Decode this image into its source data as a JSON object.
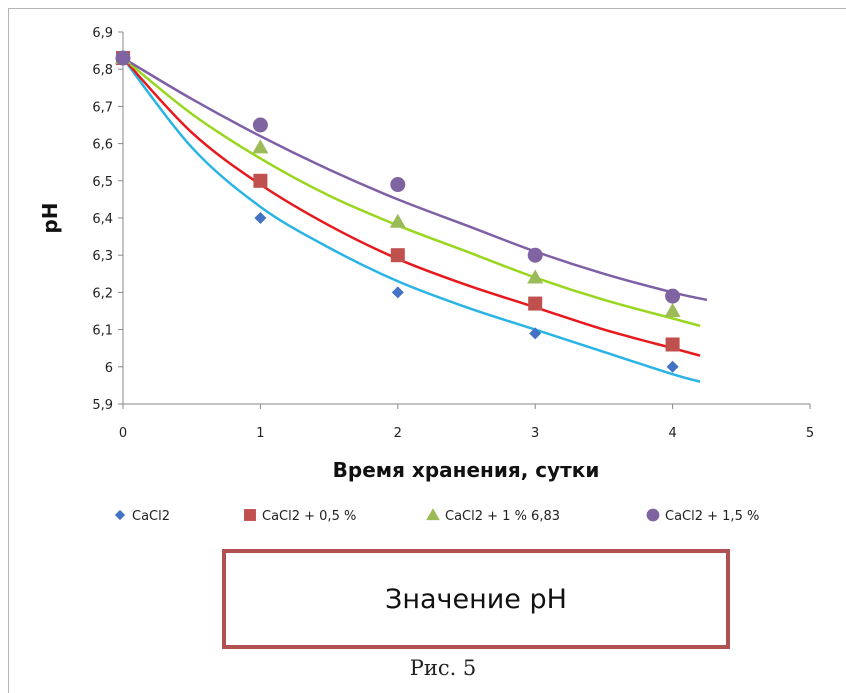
{
  "chart_data": {
    "type": "scatter",
    "xlabel": "Время хранения, сутки",
    "ylabel": "pH",
    "xlim": [
      0,
      5
    ],
    "ylim": [
      5.9,
      6.9
    ],
    "x_ticks": [
      "0",
      "1",
      "2",
      "3",
      "4",
      "5"
    ],
    "y_ticks": [
      "5,9",
      "6",
      "6,1",
      "6,2",
      "6,3",
      "6,4",
      "6,5",
      "6,6",
      "6,7",
      "6,8",
      "6,9"
    ],
    "grid": false,
    "legend_position": "bottom",
    "series": [
      {
        "name": "CaCl2",
        "marker": "diamond",
        "color": "#4472C4",
        "line_color": "#2AB4E6",
        "x": [
          0,
          1,
          2,
          3,
          4
        ],
        "y": [
          6.83,
          6.4,
          6.2,
          6.09,
          6.0
        ],
        "trend_x": [
          0,
          0.5,
          1,
          1.5,
          2,
          2.5,
          3,
          3.5,
          4,
          4.2
        ],
        "trend_y": [
          6.83,
          6.59,
          6.43,
          6.32,
          6.23,
          6.16,
          6.1,
          6.04,
          5.98,
          5.96
        ]
      },
      {
        "name": "CaCl2 + 0,5 %",
        "marker": "square",
        "color": "#C0504D",
        "line_color": "#E8191C",
        "x": [
          0,
          1,
          2,
          3,
          4
        ],
        "y": [
          6.83,
          6.5,
          6.3,
          6.17,
          6.06
        ],
        "trend_x": [
          0,
          0.5,
          1,
          1.5,
          2,
          2.5,
          3,
          3.5,
          4,
          4.2
        ],
        "trend_y": [
          6.83,
          6.63,
          6.49,
          6.38,
          6.29,
          6.22,
          6.16,
          6.1,
          6.05,
          6.03
        ]
      },
      {
        "name": "CaCl2 + 1 % 6,83",
        "marker": "triangle",
        "color": "#9BBB59",
        "line_color": "#99D61E",
        "x": [
          0,
          1,
          2,
          3,
          4
        ],
        "y": [
          6.83,
          6.59,
          6.39,
          6.24,
          6.15
        ],
        "trend_x": [
          0,
          0.5,
          1,
          1.5,
          2,
          2.5,
          3,
          3.5,
          4,
          4.2
        ],
        "trend_y": [
          6.83,
          6.68,
          6.56,
          6.46,
          6.38,
          6.31,
          6.24,
          6.18,
          6.13,
          6.11
        ]
      },
      {
        "name": "CaCl2 + 1,5 %",
        "marker": "circle",
        "color": "#8064A2",
        "line_color": "#7F5FA6",
        "x": [
          0,
          1,
          2,
          3,
          4
        ],
        "y": [
          6.83,
          6.65,
          6.49,
          6.3,
          6.19
        ],
        "trend_x": [
          0,
          0.5,
          1,
          1.5,
          2,
          2.5,
          3,
          3.5,
          4,
          4.25
        ],
        "trend_y": [
          6.83,
          6.72,
          6.62,
          6.53,
          6.45,
          6.38,
          6.31,
          6.25,
          6.2,
          6.18
        ]
      }
    ]
  },
  "caption_box": "Значение pH",
  "figure_label": "Рис. 5"
}
